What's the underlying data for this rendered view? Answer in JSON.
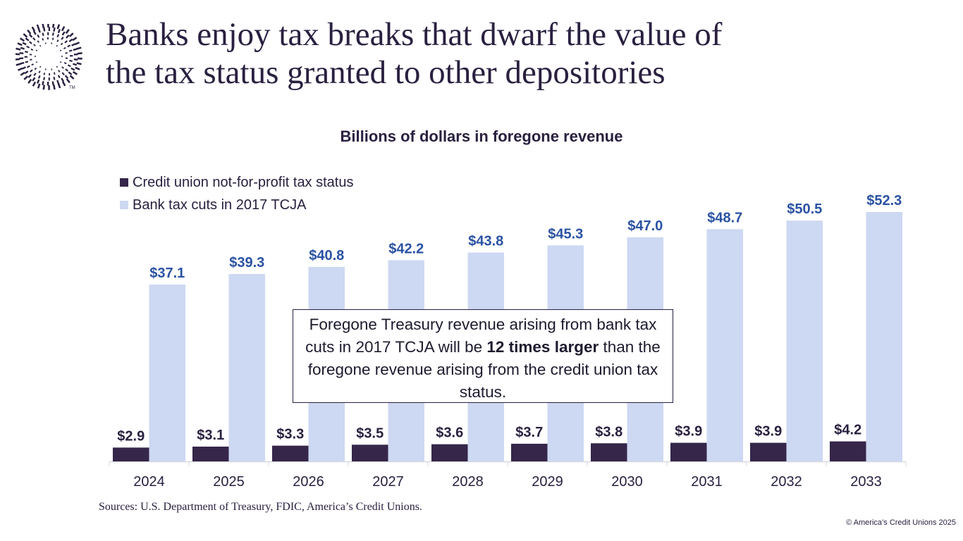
{
  "title_line1": "Banks enjoy tax breaks that dwarf the value of",
  "title_line2": "the tax status granted to other depositories",
  "logo_text": "TM",
  "chart_data": {
    "type": "bar",
    "title": "Billions of dollars in foregone revenue",
    "categories": [
      "2024",
      "2025",
      "2026",
      "2027",
      "2028",
      "2029",
      "2030",
      "2031",
      "2032",
      "2033"
    ],
    "series": [
      {
        "name": "Credit union not-for-profit tax status",
        "color": "#35264a",
        "label_color": "#2a2040",
        "values": [
          2.9,
          3.1,
          3.3,
          3.5,
          3.6,
          3.7,
          3.8,
          3.9,
          3.9,
          4.2
        ],
        "labels": [
          "$2.9",
          "$3.1",
          "$3.3",
          "$3.5",
          "$3.6",
          "$3.7",
          "$3.8",
          "$3.9",
          "$3.9",
          "$4.2"
        ]
      },
      {
        "name": "Bank tax cuts in 2017 TCJA",
        "color": "#cdd8f2",
        "label_color": "#2a52a3",
        "values": [
          37.1,
          39.3,
          40.8,
          42.2,
          43.8,
          45.3,
          47.0,
          48.7,
          50.5,
          52.3
        ],
        "labels": [
          "$37.1",
          "$39.3",
          "$40.8",
          "$42.2",
          "$43.8",
          "$45.3",
          "$47.0",
          "$48.7",
          "$50.5",
          "$52.3"
        ]
      }
    ],
    "ylim": [
      0,
      55
    ],
    "grid": false,
    "legend_placement": "top-left"
  },
  "callout": {
    "text1": "Foregone Treasury revenue arising from bank tax cuts in 2017 TCJA will be ",
    "bold": "12 times larger",
    "text2": " than the foregone revenue arising from the credit union tax status."
  },
  "source": "Sources: U.S. Department of Treasury, FDIC, America’s Credit Unions.",
  "copyright": "© America’s Credit Unions 2025"
}
